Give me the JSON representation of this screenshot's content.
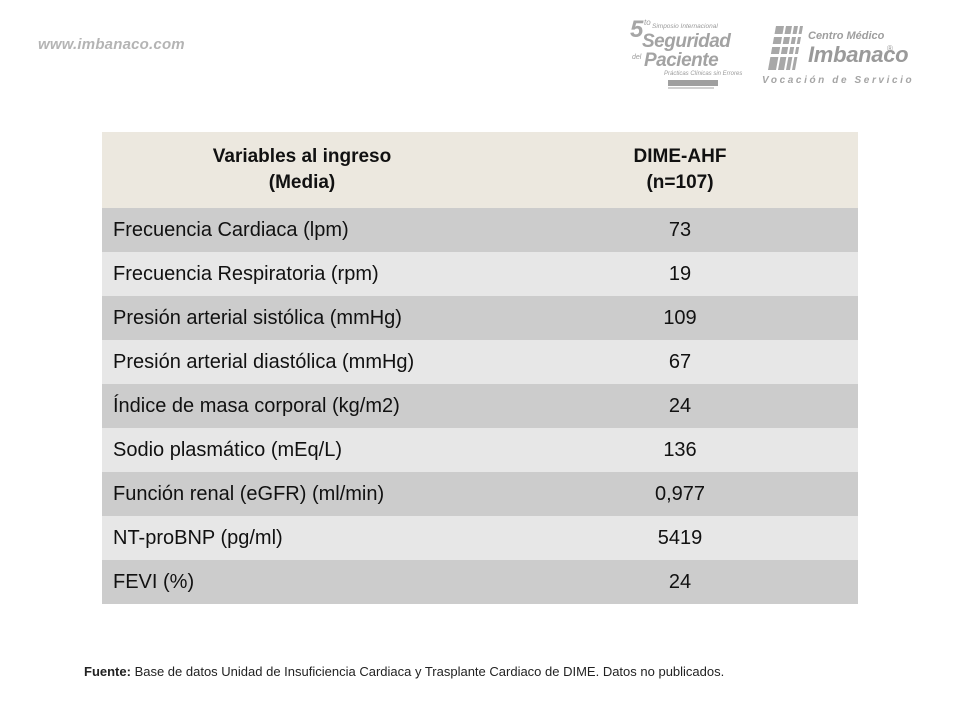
{
  "header": {
    "site_url": "www.imbanaco.com",
    "symposium_logo": {
      "number": "5",
      "superscript": "to",
      "line1": "Simposio Internacional",
      "line2": "Seguridad",
      "connector": "del",
      "line3": "Paciente",
      "line4": "Prácticas Clínicas sin Errores"
    },
    "imbanaco_logo": {
      "top_text": "Centro Médico",
      "name": "Imbanaco",
      "registered": "®",
      "tagline": "Vocación de Servicio"
    }
  },
  "table": {
    "header": {
      "col1_line1": "Variables al ingreso",
      "col1_line2": "(Media)",
      "col2_line1": "DIME-AHF",
      "col2_line2": "(n=107)"
    },
    "rows": [
      {
        "variable": "Frecuencia Cardiaca (lpm)",
        "value": "73"
      },
      {
        "variable": "Frecuencia Respiratoria (rpm)",
        "value": "19"
      },
      {
        "variable": "Presión arterial sistólica (mmHg)",
        "value": "109"
      },
      {
        "variable": "Presión arterial diastólica (mmHg)",
        "value": "67"
      },
      {
        "variable": "Índice de masa corporal (kg/m2)",
        "value": "24"
      },
      {
        "variable": "Sodio plasmático (mEq/L)",
        "value": "136"
      },
      {
        "variable": "Función renal (eGFR) (ml/min)",
        "value": "0,977"
      },
      {
        "variable": "NT-proBNP (pg/ml)",
        "value": "5419"
      },
      {
        "variable": "FEVI (%)",
        "value": "24"
      }
    ]
  },
  "footer": {
    "source_label": "Fuente:",
    "source_text": " Base de datos Unidad de Insuficiencia Cardiaca y Trasplante Cardiaco de DIME. Datos no publicados."
  },
  "colors": {
    "header_bg": "#ece8df",
    "row_dark": "#cccccc",
    "row_light": "#e7e7e7",
    "logo_gray": "#9e9e9e"
  }
}
